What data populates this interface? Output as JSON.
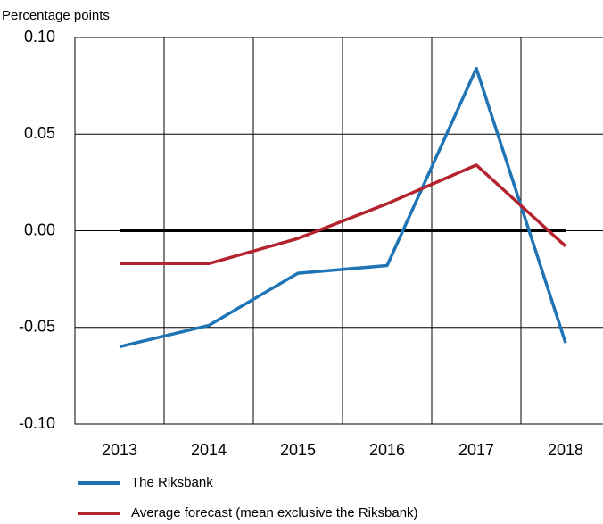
{
  "chart_data": {
    "type": "line",
    "y_label": "Percentage points",
    "categories": [
      "2013",
      "2014",
      "2015",
      "2016",
      "2017",
      "2018"
    ],
    "series": [
      {
        "name": "The Riksbank",
        "color": "#1f74b5",
        "values": [
          -0.06,
          -0.049,
          -0.022,
          -0.018,
          0.084,
          -0.058
        ]
      },
      {
        "name": "Average forecast (mean exclusive the Riksbank)",
        "color": "#b5232f",
        "values": [
          -0.017,
          -0.017,
          -0.004,
          0.014,
          0.034,
          -0.008
        ]
      }
    ],
    "ylim": [
      -0.1,
      0.1
    ],
    "yticks": [
      {
        "value": 0.1,
        "label": "0.10"
      },
      {
        "value": 0.05,
        "label": "0.05"
      },
      {
        "value": 0,
        "label": "0.00"
      },
      {
        "value": -0.05,
        "label": "-0.05"
      },
      {
        "value": -0.1,
        "label": "-0.10"
      }
    ],
    "grid": true,
    "zero_line": true
  }
}
